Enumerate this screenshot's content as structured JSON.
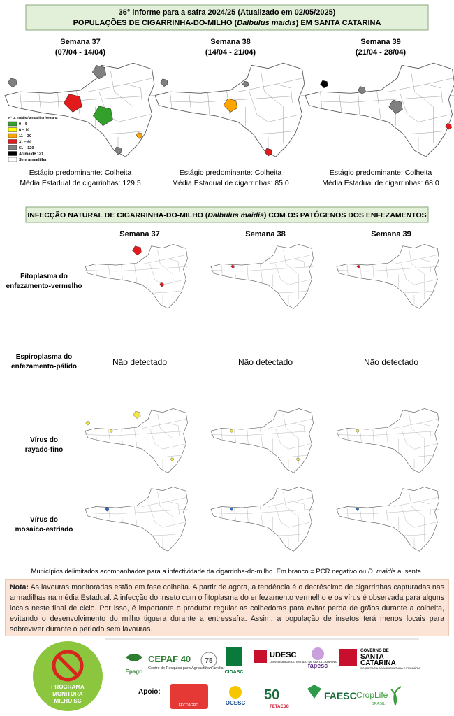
{
  "header": {
    "line1": "36° informe para a safra 2024/25 (Atualizado em 02/05/2025)",
    "line2a": "POPULAÇÕES DE CIGARRINHA-DO-MILHO (",
    "line2b": "Dalbulus maidis",
    "line2c": ") EM SANTA CATARINA"
  },
  "population": {
    "weeks": [
      {
        "title": "Semana 37",
        "dates": "(07/04 - 14/04)",
        "stage": "Estágio predominante: Colheita",
        "mean": "Média Estadual de cigarrinhas: 129,5"
      },
      {
        "title": "Semana 38",
        "dates": "(14/04 - 21/04)",
        "stage": "Estágio predominante: Colheita",
        "mean": "Média Estadual de cigarrinhas: 85,0"
      },
      {
        "title": "Semana 39",
        "dates": "(21/04 - 28/04)",
        "stage": "Estágio predominante: Colheita",
        "mean": "Média Estadual de cigarrinhas: 68,0"
      }
    ],
    "legend": {
      "title": "Nº D. maidis / armadilha /semana",
      "items": [
        {
          "label": "0 – 5",
          "color": "#33a02c"
        },
        {
          "label": "6 – 10",
          "color": "#ffff00"
        },
        {
          "label": "11 – 30",
          "color": "#ffa500"
        },
        {
          "label": "31 – 60",
          "color": "#e31a1c"
        },
        {
          "label": "61 – 120",
          "color": "#808080"
        },
        {
          "label": "Acima de 121",
          "color": "#000000"
        },
        {
          "label": "Sem armadilha",
          "color": "#ffffff"
        }
      ]
    }
  },
  "infection": {
    "titlea": "INFECÇÃO NATURAL DE CIGARRINHA-DO-MILHO (",
    "titleb": "Dalbulus maidis",
    "titlec": ") COM OS PATÓGENOS DOS ENFEZAMENTOS",
    "weeks": [
      "Semana 37",
      "Semana 38",
      "Semana 39"
    ],
    "rows": [
      {
        "label": [
          "Fitoplasma do",
          "enfezamento-vermelho"
        ]
      },
      {
        "label": [
          "Espiroplasma do",
          "enfezamento-pálido"
        ],
        "cells": [
          "Não detectado",
          "Não detectado",
          "Não detectado"
        ]
      },
      {
        "label": [
          "Vírus do",
          "rayado-fino"
        ]
      },
      {
        "label": [
          "Vírus do",
          "mosaico-estriado"
        ]
      }
    ],
    "footnotea": "Municípios delimitados acompanhados para a infectividade da cigarrinha-do-milho.  Em branco = PCR negativo ou ",
    "footnoteb": "D. maidis",
    "footnotec": " ausente."
  },
  "note": {
    "label": "Nota:",
    "text": " As lavouras monitoradas estão em fase colheita. A partir de agora, a tendência é o decréscimo de cigarrinhas capturadas nas armadilhas na média Estadual. A infecção do inseto com o fitoplasma do enfezamento vermelho e os vírus é observada para alguns locais neste final de ciclo. Por isso, é importante o produtor regular as colhedoras para evitar perda de grãos durante a colheita, evitando o desenvolvimento do milho tiguera durante a entressafra. Assim, a população de insetos terá menos locais para sobreviver durante o período sem lavouras."
  },
  "logos": {
    "program": [
      "PROGRAMA",
      "MONITORA",
      "MILHO SC"
    ],
    "epagri": "Epagri",
    "cepaf": "CEPAF 40",
    "cepafsub": "Centro de Pesquisa para Agricultura Familiar",
    "anos": "75",
    "cidasc": "CIDASC",
    "udesc": "UDESC",
    "udescsub": "UNIVERSIDADE DO ESTADO DE SANTA CATARINA",
    "fapesc": "fapesc",
    "gov1": "GOVERNO DE",
    "gov2": "SANTA",
    "gov3": "CATARINA",
    "gov4": "SECRETARIA DA AGRICULTURA E PECUÁRIA",
    "apoio": "Apoio:",
    "fecoagro": "FECOAGRO",
    "ocesc": "OCESC",
    "fetaesc": "FETAESC",
    "faesc": "FAESC",
    "croplife": "CropLife",
    "brasil": "BRASIL"
  }
}
